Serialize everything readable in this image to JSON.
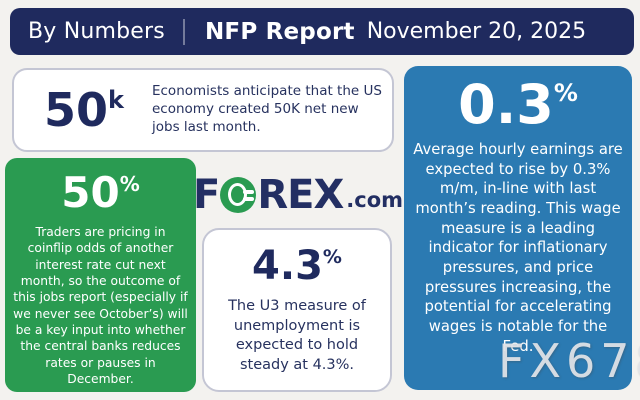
{
  "header": {
    "brand": "By Numbers",
    "report": "NFP Report",
    "date": "November 20, 2025"
  },
  "stats": {
    "jobs": {
      "value": "50",
      "unit": "k",
      "description": "Economists anticipate that the US economy created 50K net new jobs last month."
    },
    "rate_cut_odds": {
      "value": "50",
      "unit": "%",
      "description": "Traders are pricing in coinflip odds of another interest rate cut next month, so the outcome of this jobs report (especially if we never see October’s) will be a key input into whether the central banks reduces rates or pauses in December."
    },
    "unemployment": {
      "value": "4.3",
      "unit": "%",
      "description": "The U3 measure of unemployment is expected to hold steady at 4.3%."
    },
    "earnings": {
      "value": "0.3",
      "unit": "%",
      "description": "Average hourly earnings are expected to rise by 0.3% m/m, in-line with last month’s reading. This wage measure is a leading indicator for inflationary pressures, and price pressures increasing, the potential for accelerating wages is notable for the Fed."
    }
  },
  "logo": {
    "part1": "F",
    "part2": "REX",
    "tld": ".com",
    "o_icon": "forex-zero-icon"
  },
  "watermark": "FX678",
  "colors": {
    "navy": "#1f2a5e",
    "green": "#2a9b51",
    "blue": "#2b7ab2",
    "background": "#f3f2ef",
    "text_navy": "#27325f"
  }
}
